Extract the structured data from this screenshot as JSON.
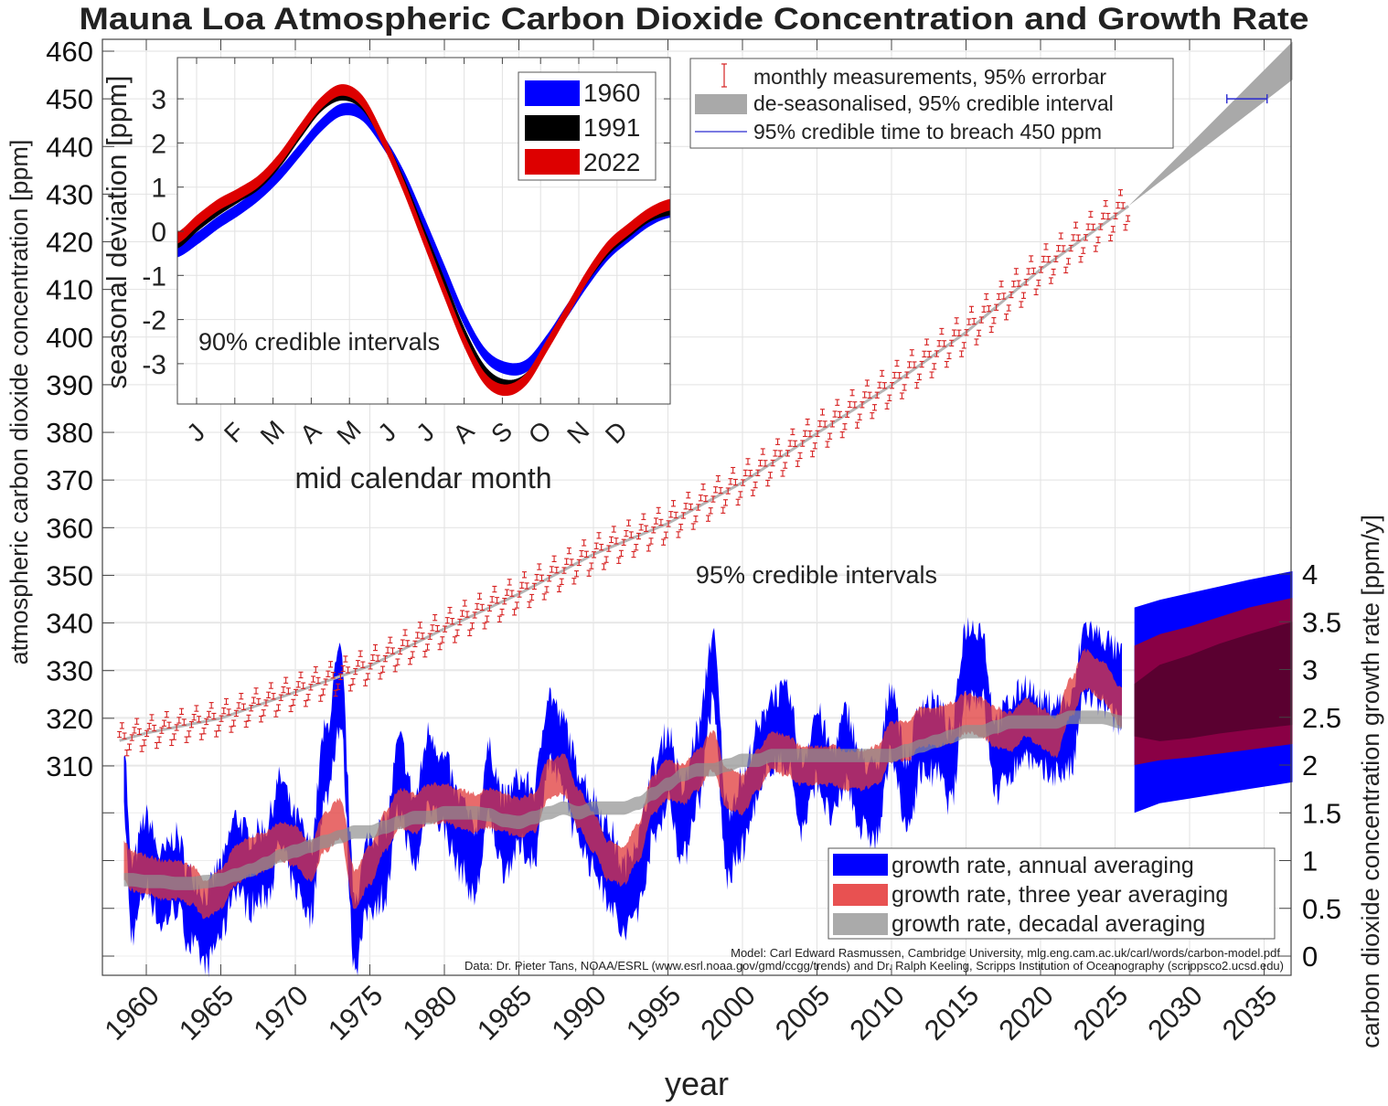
{
  "chart_data": [
    {
      "id": "main",
      "type": "scatter",
      "title": "Mauna Loa Atmospheric Carbon Dioxide Concentration and Growth Rate",
      "xlabel": "year",
      "ylabel": "atmospheric carbon dioxide concentration [ppm]",
      "ylabel_right": "carbon dioxide concentration growth rate [ppm/y]",
      "xlim": [
        1953.2,
        2036.9
      ],
      "ylim": [
        307.5,
        462.0
      ],
      "ylim_right": [
        -0.2,
        4.4
      ],
      "grid": true,
      "x_ticks": [
        1960,
        1965,
        1970,
        1975,
        1980,
        1985,
        1990,
        1995,
        2000,
        2005,
        2010,
        2015,
        2020,
        2025,
        2030,
        2035
      ],
      "y_ticks": [
        310,
        320,
        330,
        340,
        350,
        360,
        370,
        380,
        390,
        400,
        410,
        420,
        430,
        440,
        450,
        460
      ],
      "y_ticks_right": [
        "0",
        "0.5",
        "1",
        "1.5",
        "2",
        "2.5",
        "3",
        "3.5",
        "4"
      ],
      "annotation": "95% credible intervals",
      "co2_series": {
        "name": "monthly measurements, 95% errorbar",
        "trend_knots": [
          [
            1958.2,
            315.3
          ],
          [
            1960,
            316.9
          ],
          [
            1965,
            320.0
          ],
          [
            1970,
            325.5
          ],
          [
            1975,
            331.0
          ],
          [
            1980,
            338.8
          ],
          [
            1985,
            346.1
          ],
          [
            1990,
            354.4
          ],
          [
            1995,
            360.9
          ],
          [
            2000,
            369.5
          ],
          [
            2005,
            379.8
          ],
          [
            2010,
            389.9
          ],
          [
            2015,
            401.0
          ],
          [
            2020,
            414.2
          ],
          [
            2025.9,
            427.5
          ]
        ],
        "seasonal_amplitude_ppm": 3.0,
        "errorbar_ppm": 0.6
      },
      "deseasonalised_forecast": {
        "name": "de-seasonalised, 95% credible interval",
        "start": [
          2025.9,
          427.5
        ],
        "end_year": 2036.9,
        "end_low": 454.0,
        "end_high": 462.0
      },
      "breach_450": {
        "name": "95% credible time to breach 450 ppm",
        "year_low": 2032.5,
        "year_high": 2035.2,
        "ppm": 450
      },
      "growth_rate": {
        "years": [
          1958.5,
          1959,
          1960,
          1961,
          1962,
          1963,
          1964,
          1965,
          1966,
          1967,
          1968,
          1969,
          1970,
          1971,
          1972,
          1973,
          1974,
          1975,
          1976,
          1977,
          1978,
          1979,
          1980,
          1981,
          1982,
          1983,
          1984,
          1985,
          1986,
          1987,
          1988,
          1989,
          1990,
          1991,
          1992,
          1993,
          1994,
          1995,
          1996,
          1997,
          1998,
          1999,
          2000,
          2001,
          2002,
          2003,
          2004,
          2005,
          2006,
          2007,
          2008,
          2009,
          2010,
          2011,
          2012,
          2013,
          2014,
          2015,
          2016,
          2017,
          2018,
          2019,
          2020,
          2021,
          2022,
          2023,
          2024,
          2025.5
        ],
        "annual_mean": [
          1.9,
          0.6,
          1.1,
          0.7,
          0.9,
          0.5,
          0.3,
          0.6,
          1.1,
          0.9,
          1.0,
          1.5,
          1.1,
          0.8,
          2.0,
          2.8,
          0.3,
          0.9,
          1.0,
          1.9,
          1.3,
          2.0,
          1.7,
          1.3,
          1.0,
          1.8,
          1.3,
          1.5,
          1.4,
          2.4,
          2.1,
          1.6,
          1.3,
          1.0,
          0.6,
          0.9,
          1.6,
          2.0,
          1.4,
          2.0,
          3.0,
          1.2,
          1.5,
          2.0,
          2.4,
          2.4,
          1.7,
          2.2,
          1.8,
          2.2,
          1.7,
          1.6,
          2.5,
          1.7,
          2.3,
          2.3,
          2.0,
          3.1,
          3.1,
          2.1,
          2.3,
          2.5,
          2.3,
          2.3,
          2.3,
          3.1,
          3.0,
          2.8
        ],
        "annual_halfwidth": 0.35,
        "three_year_mean": [
          1.0,
          0.9,
          0.85,
          0.8,
          0.8,
          0.75,
          0.6,
          0.7,
          0.95,
          1.05,
          1.1,
          1.2,
          1.15,
          1.0,
          1.3,
          1.45,
          0.7,
          0.95,
          1.3,
          1.55,
          1.5,
          1.6,
          1.6,
          1.55,
          1.5,
          1.55,
          1.5,
          1.45,
          1.5,
          1.85,
          1.9,
          1.55,
          1.3,
          1.0,
          0.95,
          1.2,
          1.7,
          1.85,
          1.8,
          1.95,
          2.15,
          1.75,
          1.7,
          1.95,
          2.15,
          2.1,
          2.0,
          2.0,
          2.0,
          1.95,
          1.95,
          2.0,
          2.25,
          2.25,
          2.4,
          2.4,
          2.45,
          2.55,
          2.5,
          2.4,
          2.35,
          2.5,
          2.4,
          2.3,
          2.7,
          3.0,
          2.9,
          2.6
        ],
        "three_year_halfwidth": 0.2,
        "decadal_mean": [
          0.8,
          0.8,
          0.78,
          0.78,
          0.76,
          0.76,
          0.78,
          0.8,
          0.85,
          0.9,
          0.97,
          1.05,
          1.1,
          1.15,
          1.2,
          1.25,
          1.3,
          1.3,
          1.35,
          1.4,
          1.45,
          1.45,
          1.5,
          1.5,
          1.5,
          1.48,
          1.42,
          1.4,
          1.45,
          1.5,
          1.55,
          1.5,
          1.55,
          1.55,
          1.55,
          1.6,
          1.7,
          1.8,
          1.9,
          1.95,
          1.95,
          2.0,
          2.05,
          2.05,
          2.1,
          2.1,
          2.1,
          2.1,
          2.1,
          2.1,
          2.1,
          2.1,
          2.1,
          2.15,
          2.2,
          2.25,
          2.3,
          2.35,
          2.35,
          2.4,
          2.45,
          2.45,
          2.45,
          2.45,
          2.5,
          2.5,
          2.5,
          2.45
        ],
        "decadal_halfwidth": 0.07,
        "forecast": {
          "years": [
            2026.3,
            2028,
            2030,
            2032,
            2034,
            2036.9
          ],
          "annual_low": [
            1.5,
            1.6,
            1.65,
            1.7,
            1.75,
            1.82
          ],
          "annual_high": [
            3.65,
            3.73,
            3.8,
            3.87,
            3.94,
            4.03
          ],
          "three_year_low": [
            2.0,
            2.05,
            2.08,
            2.12,
            2.16,
            2.22
          ],
          "three_year_high": [
            3.25,
            3.37,
            3.45,
            3.55,
            3.65,
            3.75
          ],
          "decadal_low": [
            2.3,
            2.25,
            2.28,
            2.33,
            2.37,
            2.42
          ],
          "decadal_high": [
            2.85,
            3.05,
            3.15,
            3.27,
            3.37,
            3.5
          ]
        }
      },
      "legend_upper": [
        {
          "label": "monthly measurements, 95% errorbar",
          "color": "#d62020",
          "kind": "errorbar"
        },
        {
          "label": "de-seasonalised, 95% credible interval",
          "color": "#a9a9a9",
          "kind": "patch"
        },
        {
          "label": "95% credible time to breach 450 ppm",
          "color": "#2a2ad0",
          "kind": "line"
        }
      ],
      "legend_lower": [
        {
          "label": "growth rate, annual averaging",
          "color": "#0000ff"
        },
        {
          "label": "growth rate, three year averaging",
          "color": "#e85151"
        },
        {
          "label": "growth rate, decadal averaging",
          "color": "#aaaaaa"
        }
      ],
      "legend_upper_placement": "top-center",
      "legend_lower_placement": "bottom-right",
      "credits": [
        "Model: Carl Edward Rasmussen, Cambridge University, mlg.eng.cam.ac.uk/carl/words/carbon-model.pdf",
        "Data: Dr. Pieter Tans, NOAA/ESRL (www.esrl.noaa.gov/gmd/ccgg/trends) and Dr. Ralph Keeling, Scripps Institution of Oceanography (scrippsco2.ucsd.edu)"
      ]
    },
    {
      "id": "inset",
      "type": "line",
      "title": "",
      "xlabel": "mid calendar month",
      "ylabel": "seasonal deviation [ppm]",
      "ylim": [
        -3.9,
        3.9
      ],
      "y_ticks": [
        -3,
        -2,
        -1,
        0,
        1,
        2,
        3
      ],
      "categories": [
        "J",
        "F",
        "M",
        "A",
        "M",
        "J",
        "J",
        "A",
        "S",
        "O",
        "N",
        "D"
      ],
      "annotation": "90% credible intervals",
      "legend_placement": "top-right",
      "series": [
        {
          "name": "1960",
          "color": "#0000ff",
          "halfwidth": 0.13,
          "x": [
            0.0,
            0.5,
            1.0,
            1.5,
            2.0,
            2.5,
            3.0,
            3.5,
            4.0,
            4.5,
            5.0,
            5.5,
            6.0,
            6.5,
            7.0,
            7.5,
            8.0,
            8.5,
            9.0,
            9.5,
            10.0,
            10.5,
            11.0,
            11.5,
            12.0
          ],
          "values": [
            -0.45,
            -0.15,
            0.2,
            0.5,
            0.85,
            1.3,
            1.85,
            2.4,
            2.75,
            2.65,
            2.05,
            1.25,
            0.2,
            -0.9,
            -2.0,
            -2.8,
            -3.1,
            -3.05,
            -2.5,
            -1.8,
            -1.1,
            -0.5,
            -0.1,
            0.25,
            0.45
          ]
        },
        {
          "name": "1991",
          "color": "#000000",
          "halfwidth": 0.08,
          "x": [
            0.0,
            0.5,
            1.0,
            1.5,
            2.0,
            2.5,
            3.0,
            3.5,
            4.0,
            4.5,
            5.0,
            5.5,
            6.0,
            6.5,
            7.0,
            7.5,
            8.0,
            8.5,
            9.0,
            9.5,
            10.0,
            10.5,
            11.0,
            11.5,
            12.0
          ],
          "values": [
            -0.3,
            0.1,
            0.45,
            0.75,
            1.05,
            1.55,
            2.2,
            2.8,
            3.05,
            2.85,
            2.1,
            1.15,
            0.0,
            -1.15,
            -2.3,
            -3.15,
            -3.45,
            -3.3,
            -2.6,
            -1.8,
            -1.05,
            -0.45,
            -0.05,
            0.3,
            0.45
          ]
        },
        {
          "name": "2022",
          "color": "#dd0000",
          "halfwidth": 0.12,
          "x": [
            0.0,
            0.5,
            1.0,
            1.5,
            2.0,
            2.5,
            3.0,
            3.5,
            4.0,
            4.5,
            5.0,
            5.5,
            6.0,
            6.5,
            7.0,
            7.5,
            8.0,
            8.5,
            9.0,
            9.5,
            10.0,
            10.5,
            11.0,
            11.5,
            12.0
          ],
          "values": [
            -0.15,
            0.25,
            0.6,
            0.85,
            1.15,
            1.65,
            2.3,
            2.9,
            3.2,
            2.95,
            2.1,
            1.05,
            -0.15,
            -1.35,
            -2.5,
            -3.35,
            -3.6,
            -3.35,
            -2.6,
            -1.8,
            -1.0,
            -0.35,
            0.05,
            0.4,
            0.6
          ]
        }
      ]
    }
  ]
}
